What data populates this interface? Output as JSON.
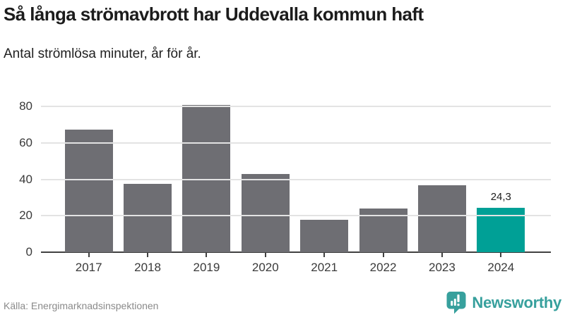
{
  "header": {
    "title": "Så långa strömavbrott har Uddevalla kommun haft",
    "subtitle": "Antal strömlösa minuter, år för år."
  },
  "chart_data": {
    "type": "bar",
    "title": "Så långa strömavbrott har Uddevalla kommun haft",
    "subtitle": "Antal strömlösa minuter, år för år.",
    "categories": [
      "2017",
      "2018",
      "2019",
      "2020",
      "2021",
      "2022",
      "2023",
      "2024"
    ],
    "values": [
      67.4,
      37.7,
      80.7,
      42.9,
      17.7,
      23.8,
      36.9,
      24.3
    ],
    "value_labels": [
      null,
      null,
      null,
      null,
      null,
      null,
      null,
      "24,3"
    ],
    "highlight_index": 7,
    "xlabel": "",
    "ylabel": "",
    "yticks": [
      0,
      20,
      40,
      60,
      80
    ],
    "ylim": [
      0,
      92.8
    ],
    "grid": true,
    "legend": "none",
    "bar_color": "#6e6e73",
    "highlight_color": "#00a096",
    "gridline_color": "#e3e3e3",
    "axis_color": "#404040"
  },
  "footer": {
    "source": "Källa: Energimarknadsinspektionen",
    "logo": {
      "text": "Newsworthy",
      "color": "#37a09d",
      "icon": "newsworthy-speech-bubble-chart-icon"
    }
  }
}
